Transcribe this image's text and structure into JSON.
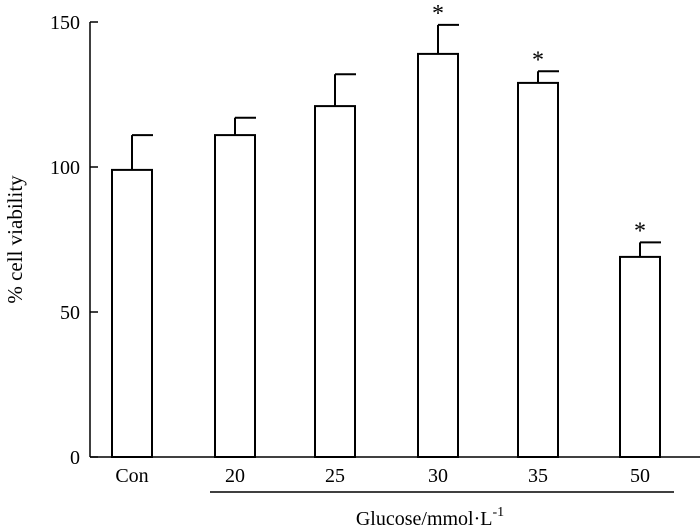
{
  "chart_data": {
    "type": "bar",
    "categories": [
      "Con",
      "20",
      "25",
      "30",
      "35",
      "50"
    ],
    "values": [
      99,
      111,
      121,
      139,
      129,
      69
    ],
    "errors": [
      12,
      6,
      11,
      10,
      4,
      5
    ],
    "significance": [
      "",
      "",
      "",
      "*",
      "*",
      "*"
    ],
    "ylabel": "% cell viability",
    "ylim": [
      0,
      150
    ],
    "yticks": [
      0,
      50,
      100,
      150
    ],
    "group_label": {
      "text": "Glucose/mmol·L",
      "superscript": "-1",
      "spans_categories": [
        "20",
        "50"
      ]
    },
    "bar_fill": "#ffffff",
    "bar_stroke": "#000000",
    "grid": false,
    "legend": "none"
  }
}
